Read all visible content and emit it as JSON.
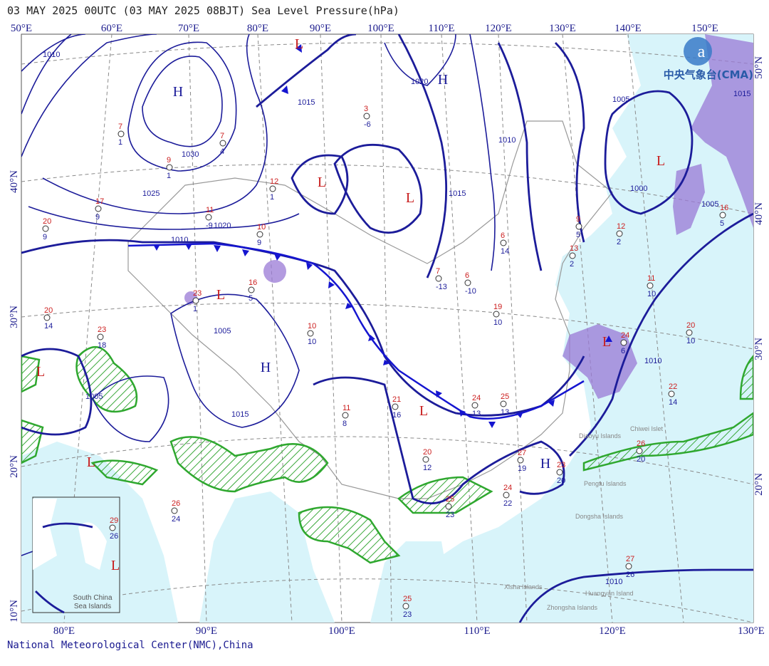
{
  "header": {
    "title": "03 MAY 2025 00UTC (03 MAY 2025 08BJT) Sea Level Pressure(hPa)"
  },
  "footer": "National Meteorological Center(NMC),China",
  "logo": "中央气象台(CMA)",
  "axes": {
    "top": [
      "50°E",
      "60°E",
      "70°E",
      "80°E",
      "90°E",
      "100°E",
      "110°E",
      "120°E",
      "130°E",
      "140°E",
      "150°E"
    ],
    "bottom": [
      "80°E",
      "90°E",
      "100°E",
      "110°E",
      "120°E",
      "130°E"
    ],
    "left": [
      "40°N",
      "30°N",
      "20°N",
      "10°N"
    ],
    "right": [
      "50°N",
      "40°N",
      "30°N",
      "20°N"
    ]
  },
  "centers": [
    "H",
    "L",
    "H",
    "L",
    "L",
    "L",
    "H",
    "L",
    "L",
    "L",
    "L",
    "H",
    "L",
    "L"
  ],
  "isobar_labels": [
    "1010",
    "1015",
    "1020",
    "1025",
    "1030",
    "1005",
    "1015",
    "1010",
    "1020",
    "1005",
    "1000",
    "1010",
    "1015",
    "1005",
    "1010",
    "1005",
    "1015",
    "1010"
  ],
  "stations": [
    {
      "temp": 7,
      "dew": 1
    },
    {
      "temp": 9,
      "dew": 1
    },
    {
      "temp": 7,
      "dew": 4
    },
    {
      "temp": 17,
      "dew": 9
    },
    {
      "temp": 20,
      "dew": 9
    },
    {
      "temp": 11,
      "dew": -9
    },
    {
      "temp": 12,
      "dew": 1
    },
    {
      "temp": 3,
      "dew": -6
    },
    {
      "temp": 10,
      "dew": 9
    },
    {
      "temp": 16,
      "dew": 5
    },
    {
      "temp": 23,
      "dew": 1
    },
    {
      "temp": 20,
      "dew": 14
    },
    {
      "temp": 23,
      "dew": 18
    },
    {
      "temp": 10,
      "dew": 10
    },
    {
      "temp": 7,
      "dew": -13
    },
    {
      "temp": 6,
      "dew": -10
    },
    {
      "temp": 19,
      "dew": 10
    },
    {
      "temp": 21,
      "dew": 16
    },
    {
      "temp": 11,
      "dew": 8
    },
    {
      "temp": 20,
      "dew": 12
    },
    {
      "temp": 24,
      "dew": 13
    },
    {
      "temp": 25,
      "dew": 13
    },
    {
      "temp": 27,
      "dew": 19
    },
    {
      "temp": 23,
      "dew": 20
    },
    {
      "temp": 24,
      "dew": 22
    },
    {
      "temp": 25,
      "dew": 23
    },
    {
      "temp": 27,
      "dew": 26
    },
    {
      "temp": 26,
      "dew": 24
    },
    {
      "temp": 22,
      "dew": 14
    },
    {
      "temp": 26,
      "dew": 20
    },
    {
      "temp": 29,
      "dew": 26
    },
    {
      "temp": 20,
      "dew": 10
    },
    {
      "temp": 11,
      "dew": 10
    },
    {
      "temp": 16,
      "dew": 5
    },
    {
      "temp": 12,
      "dew": 2
    },
    {
      "temp": 9,
      "dew": 5
    },
    {
      "temp": 13,
      "dew": 2
    },
    {
      "temp": 6,
      "dew": 14
    },
    {
      "temp": 24,
      "dew": 6
    },
    {
      "temp": 25,
      "dew": 23
    }
  ],
  "islands": [
    "Diaoyu Islands",
    "Chiwei Islet",
    "Pengtu Islands",
    "Dongsha Islands",
    "Xisha Islands",
    "Huangyan Island",
    "Zhongsha Islands"
  ],
  "inset_label": [
    "South China",
    "Sea Islands"
  ]
}
